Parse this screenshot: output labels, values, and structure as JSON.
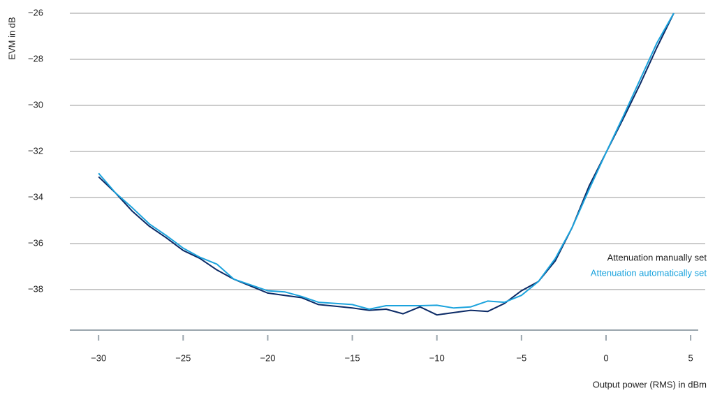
{
  "chart_data": {
    "type": "line",
    "x_label": "Output power (RMS) in dBm",
    "y_label": "EVM in dB",
    "x": [
      -30,
      -29,
      -28,
      -27,
      -26,
      -25,
      -24,
      -23,
      -22,
      -21,
      -20,
      -19,
      -18,
      -17,
      -16,
      -15,
      -14,
      -13,
      -12,
      -11,
      -10,
      -9,
      -8,
      -7,
      -6,
      -5,
      -4,
      -3,
      -2,
      -1,
      0,
      1,
      2,
      3,
      4
    ],
    "series": [
      {
        "name": "Attenuation manually set",
        "color": "#0b2a66",
        "values": [
          -33.1,
          -33.8,
          -34.6,
          -35.25,
          -35.75,
          -36.3,
          -36.65,
          -37.15,
          -37.55,
          -37.85,
          -38.15,
          -38.25,
          -38.35,
          -38.65,
          -38.72,
          -38.8,
          -38.9,
          -38.85,
          -39.05,
          -38.75,
          -39.1,
          -39.0,
          -38.9,
          -38.95,
          -38.6,
          -38.05,
          -37.65,
          -36.75,
          -35.3,
          -33.5,
          -32.05,
          -30.6,
          -29.1,
          -27.5,
          -26.0
        ]
      },
      {
        "name": "Attenuation automatically set",
        "color": "#1ba3dd",
        "values": [
          -32.95,
          -33.8,
          -34.45,
          -35.15,
          -35.65,
          -36.2,
          -36.6,
          -36.9,
          -37.55,
          -37.8,
          -38.05,
          -38.1,
          -38.3,
          -38.55,
          -38.6,
          -38.65,
          -38.85,
          -38.7,
          -38.7,
          -38.7,
          -38.68,
          -38.8,
          -38.75,
          -38.5,
          -38.55,
          -38.25,
          -37.65,
          -36.65,
          -35.3,
          -33.65,
          -32.05,
          -30.5,
          -28.9,
          -27.3,
          -26.0
        ]
      }
    ],
    "xlim": [
      -31.7,
      5.45
    ],
    "ylim": [
      -39.76,
      -26
    ],
    "xticks": [
      {
        "value": -30,
        "label": "−30"
      },
      {
        "value": -25,
        "label": "−25"
      },
      {
        "value": -20,
        "label": "−20"
      },
      {
        "value": -15,
        "label": "−15"
      },
      {
        "value": -10,
        "label": "−10"
      },
      {
        "value": -5,
        "label": "−5"
      },
      0,
      5
    ],
    "yticks": [
      {
        "value": -38,
        "label": "−38"
      },
      {
        "value": -36,
        "label": "−36"
      },
      {
        "value": -34,
        "label": "−34"
      },
      {
        "value": -32,
        "label": "−32"
      },
      {
        "value": -30,
        "label": "−30"
      },
      {
        "value": -28,
        "label": "−28"
      },
      {
        "value": -26,
        "label": "−26"
      }
    ],
    "grid": true,
    "legend": "right"
  }
}
